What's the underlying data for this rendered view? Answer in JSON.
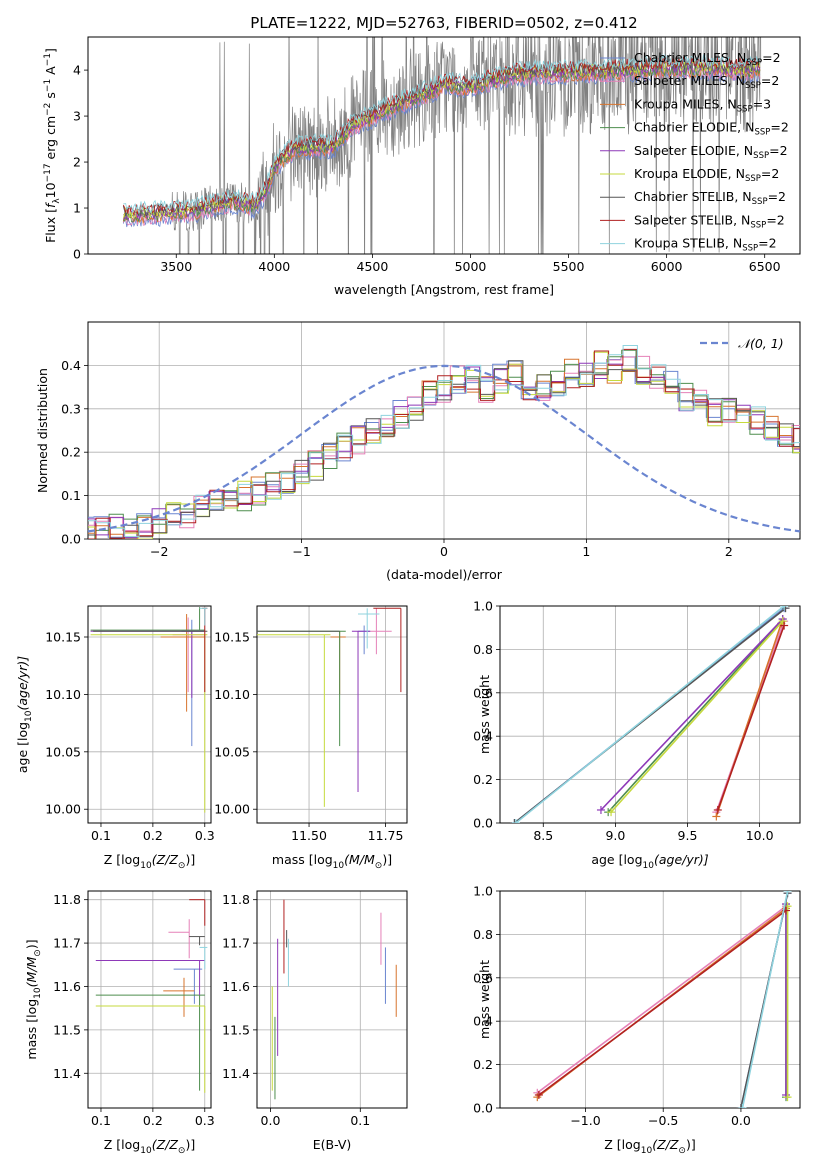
{
  "colors": {
    "Chabrier MILES": "#6A85D0",
    "Salpeter MILES": "#E581B8",
    "Kroupa MILES": "#D7742E",
    "Chabrier ELODIE": "#4E8E4E",
    "Salpeter ELODIE": "#8E39B8",
    "Kroupa ELODIE": "#C6DA3D",
    "Chabrier STELIB": "#555555",
    "Salpeter STELIB": "#B12121",
    "Kroupa STELIB": "#8FD3DE",
    "observed": "#808080",
    "normal": "#6A85D0"
  },
  "chart_data": [
    {
      "id": "spectrum",
      "type": "line",
      "title": "PLATE=1222, MJD=52763, FIBERID=0502, z=0.412",
      "xlabel": "wavelength [Angstrom, rest frame]",
      "ylabel_parts": [
        "Flux [",
        "f",
        "λ",
        "10",
        "−17",
        " erg cm",
        "−2",
        " s",
        "−1",
        " A",
        "−1",
        "]"
      ],
      "xlim": [
        3050,
        6680
      ],
      "ylim": [
        0,
        4.72
      ],
      "xticks": [
        3500,
        4000,
        4500,
        5000,
        5500,
        6000,
        6500
      ],
      "yticks": [
        0,
        1,
        2,
        3,
        4
      ],
      "legend": [
        {
          "name": "Chabrier MILES",
          "nssp": "2"
        },
        {
          "name": "Salpeter MILES",
          "nssp": "2"
        },
        {
          "name": "Kroupa MILES",
          "nssp": "3"
        },
        {
          "name": "Chabrier ELODIE",
          "nssp": "2"
        },
        {
          "name": "Salpeter ELODIE",
          "nssp": "2"
        },
        {
          "name": "Kroupa ELODIE",
          "nssp": "2"
        },
        {
          "name": "Chabrier STELIB",
          "nssp": "2"
        },
        {
          "name": "Salpeter STELIB",
          "nssp": "2"
        },
        {
          "name": "Kroupa STELIB",
          "nssp": "2"
        }
      ],
      "legend_label": "N",
      "legend_sub": "SSP",
      "continuum_knots": [
        [
          3230,
          0.85
        ],
        [
          3400,
          0.88
        ],
        [
          3600,
          0.95
        ],
        [
          3720,
          1.1
        ],
        [
          3800,
          1.15
        ],
        [
          3900,
          1.05
        ],
        [
          3960,
          1.4
        ],
        [
          4000,
          1.9
        ],
        [
          4100,
          2.3
        ],
        [
          4300,
          2.35
        ],
        [
          4400,
          2.8
        ],
        [
          4600,
          3.2
        ],
        [
          4800,
          3.55
        ],
        [
          4860,
          3.7
        ],
        [
          5000,
          3.65
        ],
        [
          5200,
          3.9
        ],
        [
          5400,
          3.95
        ],
        [
          5600,
          3.95
        ],
        [
          5800,
          4.0
        ],
        [
          6000,
          4.05
        ],
        [
          6200,
          4.05
        ],
        [
          6400,
          4.0
        ],
        [
          6480,
          4.05
        ]
      ]
    },
    {
      "id": "residuals",
      "type": "histogram",
      "xlabel": "(data-model)/error",
      "ylabel": "Normed distribution",
      "xlim": [
        -2.5,
        2.5
      ],
      "ylim": [
        0,
        0.5
      ],
      "xticks": [
        -2,
        -1,
        0,
        1,
        2
      ],
      "yticks": [
        0.0,
        0.1,
        0.2,
        0.3,
        0.4
      ],
      "legend": "𝒩(0, 1)",
      "legend_position": "top-right",
      "bin_width": 0.1,
      "bin_start": -2.5,
      "base_profile": [
        0.02,
        0.02,
        0.025,
        0.025,
        0.03,
        0.04,
        0.05,
        0.06,
        0.07,
        0.08,
        0.09,
        0.1,
        0.11,
        0.12,
        0.14,
        0.15,
        0.17,
        0.19,
        0.21,
        0.23,
        0.25,
        0.27,
        0.29,
        0.3,
        0.33,
        0.35,
        0.37,
        0.37,
        0.35,
        0.37,
        0.38,
        0.34,
        0.35,
        0.36,
        0.38,
        0.38,
        0.4,
        0.39,
        0.42,
        0.39,
        0.37,
        0.36,
        0.33,
        0.31,
        0.29,
        0.3,
        0.28,
        0.27,
        0.25,
        0.24,
        0.23,
        0.21,
        0.19,
        0.17,
        0.16,
        0.15,
        0.14,
        0.13,
        0.12,
        0.11,
        0.1,
        0.09,
        0.08,
        0.07,
        0.06,
        0.07,
        0.06,
        0.06,
        0.05,
        0.05,
        0.06,
        0.04,
        0.04,
        0.04,
        0.04,
        0.05,
        0.05,
        0.04,
        0.04,
        0.05,
        0.04
      ]
    },
    {
      "id": "age-vs-Z",
      "type": "errorbar",
      "xlabel_parts": [
        "Z [log",
        "10",
        "(Z/Z",
        "⊙",
        ")]"
      ],
      "ylabel_parts": [
        "age  [log",
        "10",
        "(age/yr)]"
      ],
      "xlim": [
        0.075,
        0.312
      ],
      "ylim": [
        9.988,
        10.177
      ],
      "xticks": [
        "0.1",
        "0.2",
        "0.3"
      ],
      "yticks": [
        "10.00",
        "10.05",
        "10.10",
        "10.15"
      ],
      "points": [
        {
          "series": "Chabrier MILES",
          "x": 0.275,
          "y": 10.155,
          "xe": [
            0.02,
            0.025
          ],
          "ye": [
            0.1,
            0.01
          ]
        },
        {
          "series": "Salpeter MILES",
          "x": 0.268,
          "y": 10.152,
          "xe": [
            0.03,
            0.03
          ],
          "ye": [
            0.05,
            0.015
          ]
        },
        {
          "series": "Kroupa MILES",
          "x": 0.265,
          "y": 10.15,
          "xe": [
            0.05,
            0.035
          ],
          "ye": [
            0.065,
            0.02
          ]
        },
        {
          "series": "Chabrier ELODIE",
          "x": 0.29,
          "y": 10.156,
          "xe": [
            0.21,
            0.01
          ],
          "ye": [
            0.0,
            0.02
          ]
        },
        {
          "series": "Salpeter ELODIE",
          "x": 0.275,
          "y": 10.155,
          "xe": [
            0.195,
            0.025
          ],
          "ye": [
            0.058,
            0.0
          ]
        },
        {
          "series": "Kroupa ELODIE",
          "x": 0.3,
          "y": 10.152,
          "xe": [
            0.22,
            0.005
          ],
          "ye": [
            0.155,
            0.0
          ]
        },
        {
          "series": "Chabrier STELIB",
          "x": 0.295,
          "y": 10.155,
          "xe": [
            0.21,
            0.01
          ],
          "ye": [
            0.0,
            0.0
          ]
        },
        {
          "series": "Salpeter STELIB",
          "x": 0.3,
          "y": 10.175,
          "xe": [
            0.005,
            0.005
          ],
          "ye": [
            0.073,
            0.0
          ]
        },
        {
          "series": "Kroupa STELIB",
          "x": 0.3,
          "y": 10.175,
          "xe": [
            0.01,
            0.005
          ],
          "ye": [
            0.015,
            0.0
          ]
        }
      ]
    },
    {
      "id": "age-vs-mass",
      "type": "errorbar",
      "xlabel_parts": [
        "mass [log",
        "10",
        "(M/M",
        "⊙",
        ")]"
      ],
      "xlim": [
        11.33,
        11.82
      ],
      "ylim": [
        9.988,
        10.177
      ],
      "xticks": [
        "11.50",
        "11.75"
      ],
      "yticks": [
        "10.00",
        "10.05",
        "10.10",
        "10.15"
      ],
      "points": [
        {
          "series": "Chabrier MILES",
          "x": 11.68,
          "y": 10.155,
          "xe": [
            0.02,
            0.02
          ],
          "ye": [
            0.02,
            0.005
          ]
        },
        {
          "series": "Salpeter MILES",
          "x": 11.72,
          "y": 10.155,
          "xe": [
            0.02,
            0.05
          ],
          "ye": [
            0.02,
            0.02
          ]
        },
        {
          "series": "Kroupa MILES",
          "x": 11.6,
          "y": 10.15,
          "xe": [
            0.03,
            0.02
          ],
          "ye": [
            0.05,
            0.005
          ]
        },
        {
          "series": "Chabrier ELODIE",
          "x": 11.6,
          "y": 10.155,
          "xe": [
            0.27,
            0.02
          ],
          "ye": [
            0.1,
            0.0
          ]
        },
        {
          "series": "Salpeter ELODIE",
          "x": 11.66,
          "y": 10.155,
          "xe": [
            0.02,
            0.04
          ],
          "ye": [
            0.14,
            0.0
          ]
        },
        {
          "series": "Kroupa ELODIE",
          "x": 11.55,
          "y": 10.152,
          "xe": [
            0.24,
            0.02
          ],
          "ye": [
            0.15,
            0.0
          ]
        },
        {
          "series": "Chabrier STELIB",
          "x": 11.58,
          "y": 10.155,
          "xe": [
            0.25,
            0.02
          ],
          "ye": [
            0.0,
            0.0
          ]
        },
        {
          "series": "Salpeter STELIB",
          "x": 11.8,
          "y": 10.175,
          "xe": [
            0.09,
            0.0
          ],
          "ye": [
            0.073,
            0.0
          ]
        },
        {
          "series": "Kroupa STELIB",
          "x": 11.69,
          "y": 10.17,
          "xe": [
            0.03,
            0.04
          ],
          "ye": [
            0.03,
            0.005
          ]
        }
      ]
    },
    {
      "id": "weight-vs-age",
      "type": "line",
      "xlabel_parts": [
        "age  [log",
        "10",
        "(age/yr)]"
      ],
      "ylabel": "mass weight",
      "xlim": [
        8.2,
        10.28
      ],
      "ylim": [
        0,
        1
      ],
      "xticks": [
        "8.5",
        "9.0",
        "9.5",
        "10.0"
      ],
      "yticks": [
        "0.0",
        "0.2",
        "0.4",
        "0.6",
        "0.8",
        "1.0"
      ],
      "series": [
        {
          "name": "Chabrier MILES",
          "x": [
            8.3,
            10.17
          ],
          "y": [
            0.0,
            0.99
          ]
        },
        {
          "name": "Salpeter MILES",
          "x": [
            9.7,
            10.17
          ],
          "y": [
            0.05,
            0.93
          ]
        },
        {
          "name": "Kroupa MILES",
          "x": [
            9.7,
            10.15
          ],
          "y": [
            0.03,
            0.92
          ]
        },
        {
          "name": "Chabrier ELODIE",
          "x": [
            8.95,
            10.16
          ],
          "y": [
            0.05,
            0.94
          ]
        },
        {
          "name": "Salpeter ELODIE",
          "x": [
            8.9,
            10.16
          ],
          "y": [
            0.06,
            0.94
          ]
        },
        {
          "name": "Kroupa ELODIE",
          "x": [
            8.97,
            10.16
          ],
          "y": [
            0.05,
            0.93
          ]
        },
        {
          "name": "Chabrier STELIB",
          "x": [
            8.3,
            10.18
          ],
          "y": [
            0.0,
            0.99
          ]
        },
        {
          "name": "Salpeter STELIB",
          "x": [
            9.71,
            10.17
          ],
          "y": [
            0.06,
            0.91
          ]
        },
        {
          "name": "Kroupa STELIB",
          "x": [
            8.31,
            10.17
          ],
          "y": [
            0.0,
            1.0
          ]
        }
      ]
    },
    {
      "id": "mass-vs-Z",
      "type": "errorbar",
      "xlabel_parts": [
        "Z [log",
        "10",
        "(Z/Z",
        "⊙",
        ")]"
      ],
      "ylabel_parts": [
        "mass [log",
        "10",
        "(M/M",
        "⊙",
        ")]"
      ],
      "xlim": [
        0.075,
        0.312
      ],
      "ylim": [
        11.32,
        11.82
      ],
      "xticks": [
        "0.1",
        "0.2",
        "0.3"
      ],
      "yticks": [
        "11.4",
        "11.5",
        "11.6",
        "11.7",
        "11.8"
      ],
      "points": [
        {
          "series": "Chabrier MILES",
          "x": 0.28,
          "y": 11.64,
          "xe": [
            0.04,
            0.015
          ],
          "ye": [
            0.08,
            0.0
          ]
        },
        {
          "series": "Salpeter MILES",
          "x": 0.27,
          "y": 11.725,
          "xe": [
            0.04,
            0.0
          ],
          "ye": [
            0.06,
            0.03
          ]
        },
        {
          "series": "Kroupa MILES",
          "x": 0.26,
          "y": 11.59,
          "xe": [
            0.04,
            0.02
          ],
          "ye": [
            0.06,
            0.03
          ]
        },
        {
          "series": "Chabrier ELODIE",
          "x": 0.29,
          "y": 11.58,
          "xe": [
            0.2,
            0.01
          ],
          "ye": [
            0.22,
            0.0
          ]
        },
        {
          "series": "Salpeter ELODIE",
          "x": 0.29,
          "y": 11.66,
          "xe": [
            0.2,
            0.01
          ],
          "ye": [
            0.08,
            0.0
          ]
        },
        {
          "series": "Kroupa ELODIE",
          "x": 0.3,
          "y": 11.555,
          "xe": [
            0.21,
            0.0
          ],
          "ye": [
            0.2,
            0.0
          ]
        },
        {
          "series": "Chabrier STELIB",
          "x": 0.29,
          "y": 11.715,
          "xe": [
            0.02,
            0.01
          ],
          "ye": [
            0.02,
            0.0
          ]
        },
        {
          "series": "Salpeter STELIB",
          "x": 0.3,
          "y": 11.8,
          "xe": [
            0.03,
            0.0
          ],
          "ye": [
            0.06,
            0.0
          ]
        },
        {
          "series": "Kroupa STELIB",
          "x": 0.3,
          "y": 11.69,
          "xe": [
            0.01,
            0.005
          ],
          "ye": [
            0.05,
            0.0
          ]
        }
      ]
    },
    {
      "id": "mass-vs-ebv",
      "type": "errorbar",
      "xlabel": "E(B-V)",
      "xlim": [
        -0.015,
        0.152
      ],
      "ylim": [
        11.32,
        11.82
      ],
      "xticks": [
        "0.0",
        "0.1"
      ],
      "yticks": [
        "11.4",
        "11.5",
        "11.6",
        "11.7",
        "11.8"
      ],
      "points": [
        {
          "series": "Chabrier MILES",
          "x": 0.128,
          "y": 11.63,
          "xe": [
            0,
            0
          ],
          "ye": [
            0.07,
            0.06
          ]
        },
        {
          "series": "Salpeter MILES",
          "x": 0.123,
          "y": 11.71,
          "xe": [
            0,
            0
          ],
          "ye": [
            0.06,
            0.06
          ]
        },
        {
          "series": "Kroupa MILES",
          "x": 0.14,
          "y": 11.59,
          "xe": [
            0,
            0
          ],
          "ye": [
            0.06,
            0.06
          ]
        },
        {
          "series": "Chabrier ELODIE",
          "x": 0.005,
          "y": 11.45,
          "xe": [
            0,
            0
          ],
          "ye": [
            0.11,
            0.08
          ]
        },
        {
          "series": "Salpeter ELODIE",
          "x": 0.008,
          "y": 11.57,
          "xe": [
            0,
            0
          ],
          "ye": [
            0.13,
            0.14
          ]
        },
        {
          "series": "Kroupa ELODIE",
          "x": 0.002,
          "y": 11.48,
          "xe": [
            0,
            0
          ],
          "ye": [
            0.12,
            0.12
          ]
        },
        {
          "series": "Chabrier STELIB",
          "x": 0.018,
          "y": 11.71,
          "xe": [
            0,
            0
          ],
          "ye": [
            0.02,
            0.02
          ]
        },
        {
          "series": "Salpeter STELIB",
          "x": 0.015,
          "y": 11.7,
          "xe": [
            0,
            0
          ],
          "ye": [
            0.07,
            0.1
          ]
        },
        {
          "series": "Kroupa STELIB",
          "x": 0.02,
          "y": 11.63,
          "xe": [
            0,
            0
          ],
          "ye": [
            0.03,
            0.08
          ]
        }
      ]
    },
    {
      "id": "weight-vs-Z",
      "type": "line",
      "xlabel_parts": [
        "Z [log",
        "10",
        "(Z/Z",
        "⊙",
        ")]"
      ],
      "ylabel": "mass weight",
      "xlim": [
        -1.55,
        0.38
      ],
      "ylim": [
        0,
        1
      ],
      "xticks": [
        "−1.0",
        "−0.5",
        "0.0"
      ],
      "xtick_values": [
        -1.0,
        -0.5,
        0.0
      ],
      "yticks": [
        "0.0",
        "0.2",
        "0.4",
        "0.6",
        "0.8",
        "1.0"
      ],
      "series": [
        {
          "name": "Chabrier MILES",
          "x": [
            0.0,
            0.3
          ],
          "y": [
            0.0,
            0.99
          ]
        },
        {
          "name": "Salpeter MILES",
          "x": [
            -1.31,
            0.29
          ],
          "y": [
            0.07,
            0.93
          ]
        },
        {
          "name": "Kroupa MILES",
          "x": [
            -1.31,
            0.29
          ],
          "y": [
            0.05,
            0.92
          ]
        },
        {
          "name": "Chabrier ELODIE",
          "x": [
            0.29,
            0.29
          ],
          "y": [
            0.05,
            0.94
          ]
        },
        {
          "name": "Salpeter ELODIE",
          "x": [
            0.29,
            0.29
          ],
          "y": [
            0.06,
            0.94
          ]
        },
        {
          "name": "Kroupa ELODIE",
          "x": [
            0.3,
            0.3
          ],
          "y": [
            0.05,
            0.93
          ]
        },
        {
          "name": "Chabrier STELIB",
          "x": [
            0.0,
            0.3
          ],
          "y": [
            0.0,
            0.99
          ]
        },
        {
          "name": "Salpeter STELIB",
          "x": [
            -1.3,
            0.29
          ],
          "y": [
            0.06,
            0.91
          ]
        },
        {
          "name": "Kroupa STELIB",
          "x": [
            0.01,
            0.3
          ],
          "y": [
            0.0,
            1.0
          ]
        }
      ]
    }
  ]
}
